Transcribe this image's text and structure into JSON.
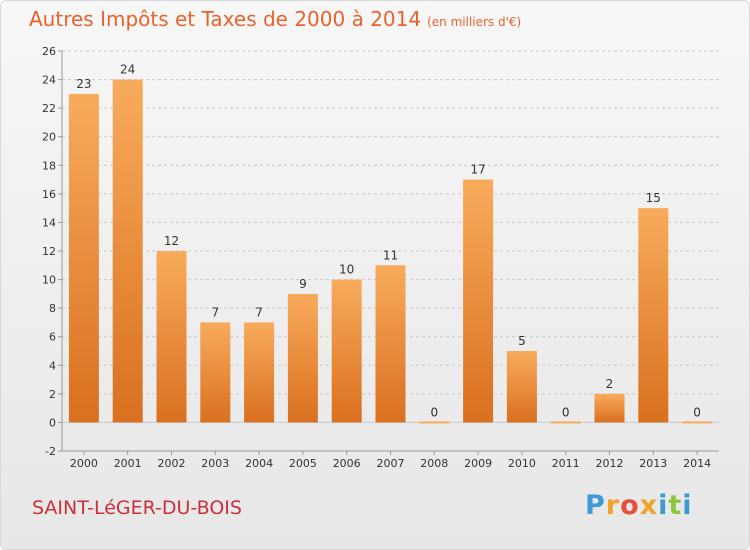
{
  "title": "Autres Impôts et Taxes de 2000 à 2014",
  "title_unit": "(en milliers d'€)",
  "commune": "SAINT-LéGER-DU-BOIS",
  "logo": {
    "text": "Proxiti",
    "letters": [
      {
        "ch": "P",
        "color": "#3a9bd5"
      },
      {
        "ch": "r",
        "color": "#f2a12c"
      },
      {
        "ch": "o",
        "color": "#e8503a"
      },
      {
        "ch": "x",
        "color": "#f2a12c"
      },
      {
        "ch": "i",
        "color": "#3a9bd5"
      },
      {
        "ch": "t",
        "color": "#8cc63f"
      },
      {
        "ch": "i",
        "color": "#3a9bd5"
      }
    ]
  },
  "colors": {
    "title": "#e8632c",
    "commune": "#cc2f3a",
    "bar_light": "#f8ab5c",
    "bar_dark": "#d9701f",
    "grid": "#c8c8c8",
    "text": "#333333"
  },
  "chart_data": {
    "type": "bar",
    "categories": [
      "2000",
      "2001",
      "2002",
      "2003",
      "2004",
      "2005",
      "2006",
      "2007",
      "2008",
      "2009",
      "2010",
      "2011",
      "2012",
      "2013",
      "2014"
    ],
    "values": [
      23,
      24,
      12,
      7,
      7,
      9,
      10,
      11,
      0,
      17,
      5,
      0,
      2,
      15,
      0
    ],
    "ylim": [
      -2,
      26
    ],
    "yticks": [
      -2,
      0,
      2,
      4,
      6,
      8,
      10,
      12,
      14,
      16,
      18,
      20,
      22,
      24,
      26
    ],
    "grid": true,
    "data_labels": true
  }
}
